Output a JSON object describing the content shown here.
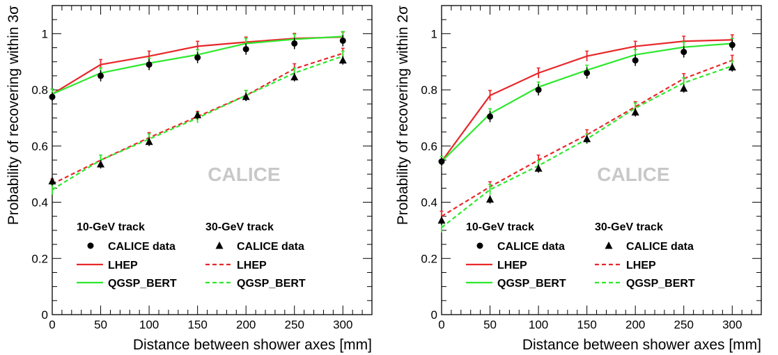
{
  "colors": {
    "lhep": "#e8272a",
    "qgsp_bert": "#2ee82e",
    "data": "#000000",
    "watermark": "#c8c8c8"
  },
  "chart_data": [
    {
      "type": "line",
      "xlabel": "Distance between shower axes [mm]",
      "ylabel": "Probability of recovering within 3σ",
      "xlim": [
        0,
        330
      ],
      "ylim": [
        0,
        1.1
      ],
      "xticks": [
        0,
        50,
        100,
        150,
        200,
        250,
        300
      ],
      "yticks": [
        0,
        0.2,
        0.4,
        0.6,
        0.8,
        1
      ],
      "xtick_labels": [
        "0",
        "50",
        "100",
        "150",
        "200",
        "250",
        "300"
      ],
      "ytick_labels": [
        "0",
        "0.2",
        "0.4",
        "0.6",
        "0.8",
        "1"
      ],
      "watermark": "CALICE",
      "x": [
        0,
        50,
        100,
        150,
        200,
        250,
        300
      ],
      "legend": {
        "header_10": "10-GeV track",
        "header_30": "30-GeV track",
        "data_label_10": "CALICE data",
        "data_label_30": "CALICE data",
        "lhep_label_10": "LHEP",
        "lhep_label_30": "LHEP",
        "qgsp_label_10": "QGSP_BERT",
        "qgsp_label_30": "QGSP_BERT"
      },
      "series": [
        {
          "name": "LHEP",
          "group": "10-GeV track",
          "kind": "solid",
          "color": "#e8272a",
          "values": [
            0.785,
            0.89,
            0.92,
            0.955,
            0.97,
            0.983,
            0.988
          ]
        },
        {
          "name": "QGSP_BERT",
          "group": "10-GeV track",
          "kind": "solid",
          "color": "#2ee82e",
          "values": [
            0.785,
            0.86,
            0.895,
            0.925,
            0.965,
            0.98,
            0.99
          ]
        },
        {
          "name": "CALICE data",
          "group": "10-GeV track",
          "kind": "circle",
          "color": "#000000",
          "values": [
            0.775,
            0.85,
            0.89,
            0.915,
            0.945,
            0.965,
            0.975
          ],
          "errors": [
            0.015,
            0.02,
            0.02,
            0.02,
            0.02,
            0.02,
            0.02
          ]
        },
        {
          "name": "LHEP",
          "group": "30-GeV track",
          "kind": "dashed",
          "color": "#e8272a",
          "values": [
            0.465,
            0.55,
            0.63,
            0.705,
            0.78,
            0.875,
            0.93
          ]
        },
        {
          "name": "QGSP_BERT",
          "group": "30-GeV track",
          "kind": "dashed",
          "color": "#2ee82e",
          "values": [
            0.445,
            0.55,
            0.625,
            0.7,
            0.78,
            0.86,
            0.92
          ]
        },
        {
          "name": "CALICE data",
          "group": "30-GeV track",
          "kind": "triangle",
          "color": "#000000",
          "values": [
            0.475,
            0.535,
            0.615,
            0.71,
            0.775,
            0.845,
            0.905
          ],
          "errors": [
            0.015,
            0.015,
            0.015,
            0.015,
            0.015,
            0.015,
            0.015
          ]
        }
      ]
    },
    {
      "type": "line",
      "xlabel": "Distance between shower axes [mm]",
      "ylabel": "Probability of recovering within 2σ",
      "xlim": [
        0,
        330
      ],
      "ylim": [
        0,
        1.1
      ],
      "xticks": [
        0,
        50,
        100,
        150,
        200,
        250,
        300
      ],
      "yticks": [
        0,
        0.2,
        0.4,
        0.6,
        0.8,
        1
      ],
      "xtick_labels": [
        "0",
        "50",
        "100",
        "150",
        "200",
        "250",
        "300"
      ],
      "ytick_labels": [
        "0",
        "0.2",
        "0.4",
        "0.6",
        "0.8",
        "1"
      ],
      "watermark": "CALICE",
      "x": [
        0,
        50,
        100,
        150,
        200,
        250,
        300
      ],
      "legend": {
        "header_10": "10-GeV track",
        "header_30": "30-GeV track",
        "data_label_10": "CALICE data",
        "data_label_30": "CALICE data",
        "lhep_label_10": "LHEP",
        "lhep_label_30": "LHEP",
        "qgsp_label_10": "QGSP_BERT",
        "qgsp_label_30": "QGSP_BERT"
      },
      "series": [
        {
          "name": "LHEP",
          "group": "10-GeV track",
          "kind": "solid",
          "color": "#e8272a",
          "values": [
            0.545,
            0.78,
            0.86,
            0.92,
            0.955,
            0.973,
            0.978
          ]
        },
        {
          "name": "QGSP_BERT",
          "group": "10-GeV track",
          "kind": "solid",
          "color": "#2ee82e",
          "values": [
            0.545,
            0.715,
            0.81,
            0.87,
            0.925,
            0.952,
            0.965
          ]
        },
        {
          "name": "CALICE data",
          "group": "10-GeV track",
          "kind": "circle",
          "color": "#000000",
          "values": [
            0.545,
            0.705,
            0.8,
            0.86,
            0.905,
            0.935,
            0.96
          ],
          "errors": [
            0.015,
            0.02,
            0.02,
            0.02,
            0.02,
            0.02,
            0.02
          ]
        },
        {
          "name": "LHEP",
          "group": "30-GeV track",
          "kind": "dashed",
          "color": "#e8272a",
          "values": [
            0.35,
            0.455,
            0.55,
            0.64,
            0.74,
            0.84,
            0.905
          ]
        },
        {
          "name": "QGSP_BERT",
          "group": "30-GeV track",
          "kind": "dashed",
          "color": "#2ee82e",
          "values": [
            0.31,
            0.445,
            0.53,
            0.625,
            0.735,
            0.825,
            0.885
          ]
        },
        {
          "name": "CALICE data",
          "group": "30-GeV track",
          "kind": "triangle",
          "color": "#000000",
          "values": [
            0.335,
            0.41,
            0.52,
            0.625,
            0.72,
            0.805,
            0.88
          ],
          "errors": [
            0.015,
            0.015,
            0.015,
            0.015,
            0.015,
            0.015,
            0.015
          ]
        }
      ]
    }
  ]
}
